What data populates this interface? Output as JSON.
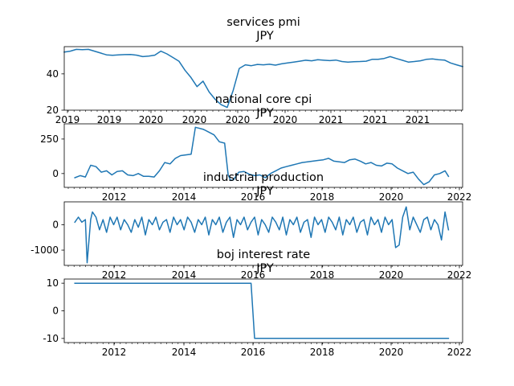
{
  "chart_data": [
    {
      "type": "line",
      "title": "services pmi",
      "subtitle": "JPY",
      "xticks": [
        "2019",
        "2019",
        "2020",
        "2020",
        "2020",
        "2020",
        "2021",
        "2021",
        "2021"
      ],
      "ylim": [
        20,
        55
      ],
      "yticks": [
        20,
        40
      ],
      "series": [
        {
          "y": [
            52,
            52.5,
            53.5,
            53.3,
            53.5,
            52.5,
            51.5,
            50.5,
            50.2,
            50.5,
            50.6,
            50.7,
            50.3,
            49.5,
            49.8,
            50.3,
            52.5,
            51,
            49,
            47,
            42,
            38,
            33,
            36,
            30,
            26,
            23,
            21.5,
            31,
            43,
            45,
            44.5,
            45.2,
            45,
            45.3,
            44.8,
            45.5,
            46,
            46.5,
            47,
            47.5,
            47.2,
            47.8,
            47.5,
            47.3,
            47.6,
            46.8,
            46.5,
            46.7,
            46.8,
            47,
            48,
            48,
            48.5,
            49.5,
            48.5,
            47.5,
            46.5,
            46.8,
            47.2,
            48,
            48.2,
            47.8,
            47.6,
            46,
            45,
            44
          ]
        }
      ]
    },
    {
      "type": "line",
      "title": "national core cpi",
      "subtitle": "JPY",
      "xticks": [
        "2012",
        "2014",
        "2016",
        "2018",
        "2020",
        "2022"
      ],
      "xlim": [
        2010.7,
        2022.0
      ],
      "ylim": [
        -100,
        360
      ],
      "yticks": [
        0,
        250
      ],
      "series": [
        {
          "x": [
            2011.0,
            2011.15,
            2011.3,
            2011.45,
            2011.6,
            2011.75,
            2011.9,
            2012.05,
            2012.2,
            2012.35,
            2012.5,
            2012.65,
            2012.8,
            2012.95,
            2013.1,
            2013.25,
            2013.4,
            2013.55,
            2013.7,
            2013.85,
            2014.0,
            2014.15,
            2014.3,
            2014.42,
            2014.5,
            2014.65,
            2014.8,
            2014.95,
            2015.1,
            2015.25,
            2015.35,
            2015.42,
            2015.5,
            2015.65,
            2015.8,
            2015.95,
            2016.1,
            2016.25,
            2016.4,
            2016.55,
            2016.7,
            2016.85,
            2017.0,
            2017.15,
            2017.3,
            2017.45,
            2017.6,
            2017.75,
            2017.9,
            2018.05,
            2018.2,
            2018.35,
            2018.5,
            2018.65,
            2018.8,
            2018.95,
            2019.1,
            2019.25,
            2019.4,
            2019.55,
            2019.7,
            2019.85,
            2020.0,
            2020.15,
            2020.3,
            2020.45,
            2020.6,
            2020.75,
            2020.9,
            2021.05,
            2021.2,
            2021.35,
            2021.5,
            2021.6
          ],
          "y": [
            -30,
            -15,
            -25,
            60,
            50,
            10,
            20,
            -10,
            15,
            20,
            -10,
            -15,
            0,
            -20,
            -20,
            -25,
            20,
            80,
            70,
            110,
            130,
            135,
            140,
            335,
            330,
            320,
            300,
            280,
            230,
            220,
            -10,
            -50,
            -45,
            10,
            15,
            -5,
            -15,
            -10,
            -30,
            0,
            20,
            40,
            50,
            60,
            70,
            80,
            85,
            90,
            95,
            100,
            110,
            90,
            85,
            80,
            100,
            105,
            90,
            70,
            80,
            60,
            55,
            75,
            70,
            40,
            20,
            0,
            10,
            -40,
            -80,
            -60,
            -10,
            0,
            20,
            -20
          ]
        }
      ]
    },
    {
      "type": "line",
      "title": "industrial production",
      "subtitle": "JPY",
      "xticks": [
        "2012",
        "2014",
        "2016",
        "2018",
        "2020",
        "2022"
      ],
      "xlim": [
        2010.7,
        2022.0
      ],
      "ylim": [
        -1600,
        900
      ],
      "yticks": [
        -1000,
        0
      ],
      "series": [
        {
          "x": [
            2011.0,
            2011.1,
            2011.2,
            2011.3,
            2011.35,
            2011.45,
            2011.5,
            2011.6,
            2011.7,
            2011.8,
            2011.9,
            2012.0,
            2012.1,
            2012.2,
            2012.3,
            2012.4,
            2012.5,
            2012.6,
            2012.7,
            2012.8,
            2012.9,
            2013.0,
            2013.1,
            2013.2,
            2013.3,
            2013.4,
            2013.5,
            2013.6,
            2013.7,
            2013.8,
            2013.9,
            2014.0,
            2014.1,
            2014.2,
            2014.3,
            2014.4,
            2014.5,
            2014.6,
            2014.7,
            2014.8,
            2014.9,
            2015.0,
            2015.1,
            2015.2,
            2015.3,
            2015.4,
            2015.5,
            2015.6,
            2015.7,
            2015.8,
            2015.9,
            2016.0,
            2016.1,
            2016.2,
            2016.3,
            2016.4,
            2016.5,
            2016.6,
            2016.7,
            2016.8,
            2016.9,
            2017.0,
            2017.1,
            2017.2,
            2017.3,
            2017.4,
            2017.5,
            2017.6,
            2017.7,
            2017.8,
            2017.9,
            2018.0,
            2018.1,
            2018.2,
            2018.3,
            2018.4,
            2018.5,
            2018.6,
            2018.7,
            2018.8,
            2018.9,
            2019.0,
            2019.1,
            2019.2,
            2019.3,
            2019.4,
            2019.5,
            2019.6,
            2019.7,
            2019.8,
            2019.9,
            2020.0,
            2020.1,
            2020.2,
            2020.3,
            2020.4,
            2020.5,
            2020.6,
            2020.7,
            2020.8,
            2020.9,
            2021.0,
            2021.1,
            2021.2,
            2021.3,
            2021.4,
            2021.5,
            2021.6
          ],
          "y": [
            100,
            300,
            100,
            200,
            -1500,
            200,
            500,
            300,
            -200,
            200,
            -300,
            300,
            0,
            300,
            -200,
            200,
            0,
            -300,
            200,
            -100,
            300,
            -400,
            200,
            0,
            300,
            -200,
            100,
            200,
            -300,
            300,
            0,
            200,
            -200,
            300,
            100,
            -300,
            200,
            0,
            300,
            -400,
            200,
            0,
            300,
            -300,
            100,
            300,
            -500,
            200,
            0,
            300,
            -200,
            100,
            300,
            -400,
            200,
            0,
            -300,
            300,
            100,
            -200,
            300,
            -400,
            200,
            0,
            300,
            -300,
            100,
            200,
            -500,
            300,
            0,
            200,
            -300,
            300,
            100,
            -200,
            300,
            -400,
            200,
            0,
            300,
            -300,
            100,
            200,
            -400,
            300,
            0,
            200,
            -300,
            300,
            0,
            200,
            -900,
            -800,
            300,
            700,
            -200,
            300,
            0,
            -300,
            200,
            300,
            -200,
            200,
            0,
            -600,
            500,
            -200
          ]
        }
      ]
    },
    {
      "type": "line",
      "title": "boj interest rate",
      "subtitle": "JPY",
      "xticks": [
        "2012",
        "2014",
        "2016",
        "2018",
        "2020",
        "2022"
      ],
      "xlim": [
        2010.7,
        2022.0
      ],
      "ylim": [
        -11.5,
        11.5
      ],
      "yticks": [
        -10,
        0,
        10
      ],
      "series": [
        {
          "x": [
            2011.0,
            2016.0,
            2016.1,
            2021.6
          ],
          "y": [
            10,
            10,
            -10,
            -10
          ]
        }
      ]
    }
  ]
}
